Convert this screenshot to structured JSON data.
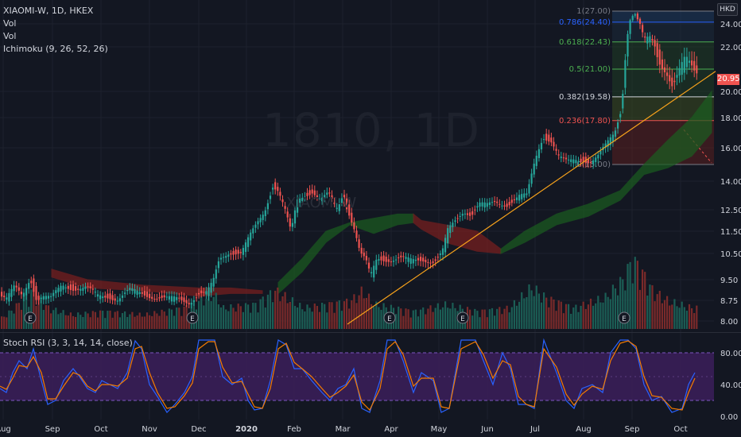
{
  "legend": {
    "symbol": "XIAOMI-W, 1D, HKEX",
    "vol1": "Vol",
    "vol2": "Vol",
    "ichimoku": "Ichimoku (9, 26, 52, 26)",
    "stoch": "Stoch RSI (3, 3, 14, 14, close)"
  },
  "watermark": {
    "big": "1810, 1D",
    "small": "XIAOMI-W"
  },
  "currency_badge": "HKD",
  "last_price": "20.95",
  "colors": {
    "bg": "#131722",
    "up": "#26a69a",
    "down": "#ef5350",
    "trend": "#f7a21b",
    "rsi_k": "#2962ff",
    "rsi_d": "#f57c00",
    "rsi_band": "#3c1e5a",
    "cloud_bull": "#1b5e20",
    "cloud_bear": "#7b1f1f"
  },
  "chart_data": [
    {
      "type": "candlestick",
      "title": "XIAOMI-W, 1D, HKEX",
      "y_ticks": [
        "24.00",
        "22.00",
        "20.00",
        "18.00",
        "16.00",
        "14.00",
        "12.50",
        "11.50",
        "10.50",
        "9.50",
        "8.75",
        "8.00"
      ],
      "x_ticks": [
        "Aug",
        "Sep",
        "Oct",
        "Nov",
        "Dec",
        "2020",
        "Feb",
        "Mar",
        "Apr",
        "May",
        "Jun",
        "Jul",
        "Aug",
        "Sep",
        "Oct"
      ],
      "close_path": [
        [
          0,
          9.0
        ],
        [
          10,
          8.8
        ],
        [
          20,
          9.2
        ],
        [
          30,
          8.9
        ],
        [
          40,
          9.6
        ],
        [
          48,
          8.8
        ],
        [
          56,
          8.9
        ],
        [
          66,
          8.8
        ],
        [
          80,
          9.3
        ],
        [
          95,
          9.2
        ],
        [
          110,
          9.2
        ],
        [
          125,
          8.9
        ],
        [
          140,
          8.9
        ],
        [
          150,
          8.8
        ],
        [
          165,
          9.1
        ],
        [
          180,
          9.0
        ],
        [
          195,
          8.9
        ],
        [
          210,
          8.8
        ],
        [
          225,
          8.8
        ],
        [
          240,
          8.7
        ],
        [
          252,
          9.0
        ],
        [
          262,
          9.0
        ],
        [
          270,
          9.4
        ],
        [
          278,
          10.3
        ],
        [
          290,
          10.6
        ],
        [
          305,
          10.5
        ],
        [
          320,
          11.5
        ],
        [
          335,
          12.5
        ],
        [
          345,
          13.8
        ],
        [
          352,
          13.5
        ],
        [
          360,
          12.5
        ],
        [
          368,
          11.4
        ],
        [
          376,
          13.0
        ],
        [
          385,
          13.3
        ],
        [
          395,
          13.5
        ],
        [
          405,
          13.0
        ],
        [
          415,
          13.3
        ],
        [
          425,
          12.5
        ],
        [
          432,
          13.2
        ],
        [
          440,
          12.5
        ],
        [
          448,
          11.6
        ],
        [
          455,
          10.5
        ],
        [
          462,
          10.2
        ],
        [
          468,
          9.6
        ],
        [
          476,
          10.3
        ],
        [
          490,
          10.3
        ],
        [
          505,
          10.3
        ],
        [
          520,
          10.2
        ],
        [
          535,
          10.3
        ],
        [
          548,
          10.2
        ],
        [
          558,
          10.5
        ],
        [
          565,
          11.5
        ],
        [
          575,
          12.0
        ],
        [
          585,
          12.5
        ],
        [
          595,
          12.3
        ],
        [
          605,
          12.8
        ],
        [
          615,
          12.7
        ],
        [
          625,
          12.9
        ],
        [
          640,
          12.8
        ],
        [
          655,
          13.2
        ],
        [
          665,
          13.2
        ],
        [
          675,
          15.3
        ],
        [
          685,
          16.8
        ],
        [
          695,
          16.5
        ],
        [
          705,
          15.4
        ],
        [
          715,
          15.1
        ],
        [
          725,
          15.3
        ],
        [
          735,
          15.3
        ],
        [
          745,
          15.2
        ],
        [
          755,
          15.5
        ],
        [
          765,
          16.2
        ],
        [
          775,
          17.0
        ],
        [
          782,
          18.4
        ],
        [
          788,
          21.5
        ],
        [
          795,
          25.3
        ],
        [
          800,
          26.5
        ],
        [
          806,
          24.0
        ],
        [
          812,
          22.5
        ],
        [
          820,
          22.8
        ],
        [
          830,
          21.5
        ],
        [
          840,
          21.0
        ],
        [
          848,
          20.2
        ],
        [
          856,
          20.8
        ],
        [
          864,
          21.4
        ],
        [
          870,
          21.2
        ],
        [
          876,
          20.95
        ]
      ],
      "volume_samples": [
        [
          0,
          0.15
        ],
        [
          12,
          0.25
        ],
        [
          40,
          0.55
        ],
        [
          60,
          0.3
        ],
        [
          90,
          0.2
        ],
        [
          130,
          0.25
        ],
        [
          180,
          0.2
        ],
        [
          230,
          0.3
        ],
        [
          268,
          0.5
        ],
        [
          280,
          0.3
        ],
        [
          320,
          0.35
        ],
        [
          345,
          0.55
        ],
        [
          360,
          0.45
        ],
        [
          380,
          0.3
        ],
        [
          440,
          0.4
        ],
        [
          455,
          0.55
        ],
        [
          470,
          0.35
        ],
        [
          520,
          0.25
        ],
        [
          560,
          0.35
        ],
        [
          600,
          0.25
        ],
        [
          640,
          0.3
        ],
        [
          668,
          0.6
        ],
        [
          685,
          0.45
        ],
        [
          720,
          0.3
        ],
        [
          760,
          0.45
        ],
        [
          782,
          0.7
        ],
        [
          795,
          1.0
        ],
        [
          805,
          0.85
        ],
        [
          820,
          0.55
        ],
        [
          840,
          0.4
        ],
        [
          870,
          0.3
        ]
      ],
      "ichimoku_cloud": {
        "upper": [
          [
            65,
            9.9
          ],
          [
            110,
            9.5
          ],
          [
            180,
            9.3
          ],
          [
            250,
            9.2
          ],
          [
            290,
            9.2
          ],
          [
            330,
            9.1
          ],
          [
            350,
            9.4
          ],
          [
            380,
            10.3
          ],
          [
            410,
            11.5
          ],
          [
            440,
            11.9
          ],
          [
            470,
            12.1
          ],
          [
            500,
            12.3
          ],
          [
            520,
            12.3
          ],
          [
            530,
            12.0
          ],
          [
            560,
            11.8
          ],
          [
            600,
            11.5
          ],
          [
            630,
            10.7
          ],
          [
            660,
            11.5
          ],
          [
            700,
            12.3
          ],
          [
            740,
            12.8
          ],
          [
            780,
            13.5
          ],
          [
            810,
            15.0
          ],
          [
            840,
            16.5
          ],
          [
            870,
            18.0
          ],
          [
            895,
            20.0
          ]
        ],
        "lower": [
          [
            65,
            9.6
          ],
          [
            110,
            9.2
          ],
          [
            180,
            9.1
          ],
          [
            250,
            8.9
          ],
          [
            290,
            9.0
          ],
          [
            330,
            9.0
          ],
          [
            345,
            9.0
          ],
          [
            380,
            9.8
          ],
          [
            410,
            11.0
          ],
          [
            440,
            11.8
          ],
          [
            470,
            11.4
          ],
          [
            500,
            11.8
          ],
          [
            520,
            11.9
          ],
          [
            530,
            11.6
          ],
          [
            560,
            11.0
          ],
          [
            600,
            10.6
          ],
          [
            630,
            10.5
          ],
          [
            660,
            11.0
          ],
          [
            700,
            11.8
          ],
          [
            740,
            12.2
          ],
          [
            780,
            13.0
          ],
          [
            810,
            14.4
          ],
          [
            840,
            14.8
          ],
          [
            870,
            15.5
          ],
          [
            895,
            17.0
          ]
        ]
      },
      "trendline": [
        [
          437,
          7.9
        ],
        [
          900,
          20.9
        ]
      ],
      "earnings_markers": [
        "E",
        "E",
        "E",
        "E",
        "E"
      ],
      "earnings_x": [
        38,
        242,
        490,
        582,
        785
      ]
    },
    {
      "type": "line",
      "title": "Stoch RSI (3, 3, 14, 14, close)",
      "y_ticks": [
        "80.00",
        "40.00",
        "0.00"
      ],
      "band": [
        20,
        80
      ],
      "k_path": [
        [
          0,
          35
        ],
        [
          8,
          30
        ],
        [
          16,
          55
        ],
        [
          24,
          70
        ],
        [
          34,
          60
        ],
        [
          42,
          85
        ],
        [
          52,
          45
        ],
        [
          60,
          15
        ],
        [
          70,
          20
        ],
        [
          80,
          45
        ],
        [
          92,
          60
        ],
        [
          100,
          50
        ],
        [
          110,
          35
        ],
        [
          120,
          30
        ],
        [
          128,
          45
        ],
        [
          138,
          40
        ],
        [
          148,
          35
        ],
        [
          160,
          55
        ],
        [
          170,
          95
        ],
        [
          178,
          85
        ],
        [
          188,
          40
        ],
        [
          198,
          25
        ],
        [
          210,
          5
        ],
        [
          220,
          15
        ],
        [
          232,
          30
        ],
        [
          242,
          50
        ],
        [
          250,
          96
        ],
        [
          262,
          96
        ],
        [
          270,
          96
        ],
        [
          280,
          50
        ],
        [
          292,
          40
        ],
        [
          304,
          48
        ],
        [
          312,
          20
        ],
        [
          320,
          8
        ],
        [
          330,
          10
        ],
        [
          340,
          45
        ],
        [
          350,
          96
        ],
        [
          360,
          90
        ],
        [
          370,
          60
        ],
        [
          380,
          60
        ],
        [
          392,
          45
        ],
        [
          405,
          30
        ],
        [
          415,
          20
        ],
        [
          425,
          35
        ],
        [
          435,
          40
        ],
        [
          445,
          60
        ],
        [
          455,
          10
        ],
        [
          465,
          5
        ],
        [
          478,
          45
        ],
        [
          487,
          96
        ],
        [
          497,
          96
        ],
        [
          507,
          70
        ],
        [
          520,
          30
        ],
        [
          530,
          55
        ],
        [
          545,
          45
        ],
        [
          555,
          5
        ],
        [
          565,
          10
        ],
        [
          580,
          96
        ],
        [
          598,
          96
        ],
        [
          608,
          70
        ],
        [
          620,
          40
        ],
        [
          632,
          80
        ],
        [
          642,
          60
        ],
        [
          652,
          15
        ],
        [
          662,
          15
        ],
        [
          672,
          10
        ],
        [
          684,
          96
        ],
        [
          700,
          55
        ],
        [
          712,
          20
        ],
        [
          722,
          10
        ],
        [
          732,
          35
        ],
        [
          745,
          40
        ],
        [
          758,
          30
        ],
        [
          768,
          80
        ],
        [
          780,
          96
        ],
        [
          790,
          96
        ],
        [
          800,
          85
        ],
        [
          810,
          40
        ],
        [
          820,
          20
        ],
        [
          832,
          25
        ],
        [
          845,
          5
        ],
        [
          858,
          10
        ],
        [
          866,
          40
        ],
        [
          874,
          55
        ]
      ],
      "d_path": [
        [
          0,
          38
        ],
        [
          8,
          34
        ],
        [
          16,
          48
        ],
        [
          24,
          64
        ],
        [
          34,
          62
        ],
        [
          42,
          75
        ],
        [
          52,
          55
        ],
        [
          60,
          22
        ],
        [
          70,
          22
        ],
        [
          80,
          38
        ],
        [
          92,
          55
        ],
        [
          100,
          52
        ],
        [
          110,
          38
        ],
        [
          120,
          32
        ],
        [
          128,
          40
        ],
        [
          138,
          40
        ],
        [
          148,
          38
        ],
        [
          160,
          48
        ],
        [
          170,
          85
        ],
        [
          178,
          88
        ],
        [
          188,
          55
        ],
        [
          198,
          30
        ],
        [
          210,
          10
        ],
        [
          220,
          12
        ],
        [
          232,
          26
        ],
        [
          242,
          42
        ],
        [
          250,
          85
        ],
        [
          262,
          94
        ],
        [
          270,
          94
        ],
        [
          280,
          62
        ],
        [
          292,
          42
        ],
        [
          304,
          44
        ],
        [
          312,
          28
        ],
        [
          320,
          12
        ],
        [
          330,
          10
        ],
        [
          340,
          35
        ],
        [
          350,
          85
        ],
        [
          360,
          92
        ],
        [
          370,
          68
        ],
        [
          380,
          60
        ],
        [
          392,
          50
        ],
        [
          405,
          35
        ],
        [
          415,
          24
        ],
        [
          425,
          30
        ],
        [
          435,
          38
        ],
        [
          445,
          52
        ],
        [
          455,
          18
        ],
        [
          465,
          8
        ],
        [
          478,
          35
        ],
        [
          487,
          85
        ],
        [
          497,
          94
        ],
        [
          507,
          78
        ],
        [
          520,
          38
        ],
        [
          530,
          48
        ],
        [
          545,
          48
        ],
        [
          555,
          12
        ],
        [
          565,
          10
        ],
        [
          580,
          85
        ],
        [
          598,
          94
        ],
        [
          608,
          78
        ],
        [
          620,
          48
        ],
        [
          632,
          70
        ],
        [
          642,
          65
        ],
        [
          652,
          25
        ],
        [
          662,
          15
        ],
        [
          672,
          12
        ],
        [
          684,
          85
        ],
        [
          700,
          62
        ],
        [
          712,
          28
        ],
        [
          722,
          14
        ],
        [
          732,
          28
        ],
        [
          745,
          38
        ],
        [
          758,
          34
        ],
        [
          768,
          70
        ],
        [
          780,
          92
        ],
        [
          790,
          95
        ],
        [
          800,
          88
        ],
        [
          810,
          50
        ],
        [
          820,
          26
        ],
        [
          832,
          24
        ],
        [
          845,
          10
        ],
        [
          858,
          8
        ],
        [
          866,
          30
        ],
        [
          874,
          48
        ]
      ]
    }
  ],
  "fib_levels": [
    {
      "label": "1(27.00)",
      "price": 27.0,
      "color": "#787b86"
    },
    {
      "label": "0.786(24.40)",
      "price": 24.4,
      "color": "#2962ff"
    },
    {
      "label": "0.618(22.43)",
      "price": 22.43,
      "color": "#4caf50"
    },
    {
      "label": "0.5(21.00)",
      "price": 21.0,
      "color": "#4caf50"
    },
    {
      "label": "0.382(19.58)",
      "price": 19.58,
      "color": "#d1d4dc"
    },
    {
      "label": "0.236(17.80)",
      "price": 17.8,
      "color": "#ef5350"
    },
    {
      "label": "0(15.00)",
      "price": 15.0,
      "color": "#787b86"
    }
  ]
}
